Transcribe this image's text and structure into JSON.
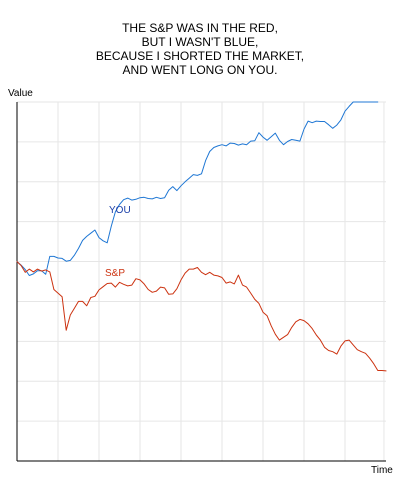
{
  "chart_data": {
    "type": "line",
    "title_lines": [
      "THE S&P WAS IN THE RED,",
      "BUT I WASN'T BLUE,",
      "BECAUSE I SHORTED THE MARKET,",
      "AND WENT LONG ON YOU."
    ],
    "xlabel": "Time",
    "ylabel": "Value",
    "xlim": [
      0,
      90
    ],
    "ylim": [
      0,
      90
    ],
    "grid": true,
    "legend": "inline",
    "series": [
      {
        "name": "YOU",
        "color": "#1f77d4",
        "x": [
          0,
          1,
          2,
          3,
          4,
          5,
          6,
          7,
          8,
          9,
          10,
          11,
          12,
          13,
          14,
          15,
          16,
          17,
          18,
          19,
          20,
          21,
          22,
          23,
          24,
          25,
          26,
          27,
          28,
          29,
          30,
          31,
          32,
          33,
          34,
          35,
          36,
          37,
          38,
          39,
          40,
          41,
          42,
          43,
          44,
          45,
          46,
          47,
          48,
          49,
          50,
          51,
          52,
          53,
          54,
          55,
          56,
          57,
          58,
          59,
          60,
          61,
          62,
          63,
          64,
          65,
          66,
          67,
          68,
          69,
          70,
          71,
          72,
          73,
          74,
          75,
          76,
          77,
          78,
          79,
          80,
          81,
          82,
          83,
          84,
          85,
          86,
          87,
          88
        ],
        "y": [
          50.0,
          49.1,
          48.0,
          46.5,
          46.9,
          47.7,
          47.7,
          46.8,
          51.3,
          51.3,
          50.9,
          50.8,
          50.1,
          50.3,
          51.6,
          53.3,
          55.3,
          56.3,
          57.1,
          57.9,
          56.0,
          55.2,
          54.7,
          58.9,
          62.5,
          64.3,
          65.5,
          65.9,
          65.4,
          65.6,
          66.0,
          66.1,
          65.8,
          65.7,
          66.1,
          65.8,
          66.0,
          67.9,
          68.8,
          67.8,
          69.0,
          70.0,
          70.9,
          71.8,
          71.6,
          72.0,
          75.3,
          77.6,
          78.6,
          79.0,
          79.3,
          79.0,
          79.7,
          79.6,
          79.2,
          79.5,
          79.3,
          80.2,
          80.3,
          82.3,
          81.2,
          80.4,
          81.3,
          82.2,
          80.4,
          79.3,
          80.1,
          80.6,
          80.4,
          80.2,
          83.2,
          85.2,
          84.8,
          85.2,
          85.1,
          85.1,
          84.3,
          83.4,
          84.2,
          85.5,
          87.7,
          88.9,
          90.0,
          90.0,
          90.0,
          90.0,
          90.0,
          90.0,
          90.0
        ]
      },
      {
        "name": "S&P",
        "color": "#cc3311",
        "x": [
          0,
          1,
          2,
          3,
          4,
          5,
          6,
          7,
          8,
          9,
          10,
          11,
          12,
          13,
          14,
          15,
          16,
          17,
          18,
          19,
          20,
          21,
          22,
          23,
          24,
          25,
          26,
          27,
          28,
          29,
          30,
          31,
          32,
          33,
          34,
          35,
          36,
          37,
          38,
          39,
          40,
          41,
          42,
          43,
          44,
          45,
          46,
          47,
          48,
          49,
          50,
          51,
          52,
          53,
          54,
          55,
          56,
          57,
          58,
          59,
          60,
          61,
          62,
          63,
          64,
          65,
          66,
          67,
          68,
          69,
          70,
          71,
          72,
          73,
          74,
          75,
          76,
          77,
          78,
          79,
          80,
          81,
          82,
          83,
          84,
          85,
          86,
          87,
          88,
          89,
          90
        ],
        "y": [
          50.0,
          49.0,
          47.3,
          48.1,
          47.4,
          48.1,
          47.6,
          47.9,
          47.4,
          43.0,
          42.1,
          41.2,
          32.8,
          36.6,
          38.3,
          40.0,
          40.0,
          38.9,
          41.0,
          41.3,
          42.9,
          43.7,
          44.5,
          44.6,
          43.6,
          44.8,
          44.3,
          43.9,
          44.1,
          45.7,
          45.4,
          44.4,
          43.0,
          42.3,
          42.6,
          43.6,
          43.4,
          41.8,
          41.9,
          43.2,
          45.4,
          47.1,
          48.1,
          48.1,
          48.5,
          47.3,
          46.7,
          47.3,
          46.6,
          46.4,
          46.0,
          44.6,
          44.9,
          44.4,
          46.6,
          44.1,
          43.6,
          42.1,
          40.5,
          39.5,
          37.3,
          36.4,
          33.9,
          31.8,
          30.3,
          31.0,
          31.7,
          33.5,
          34.9,
          35.5,
          35.2,
          34.4,
          33.2,
          31.6,
          30.3,
          28.5,
          27.7,
          27.4,
          26.8,
          28.8,
          30.1,
          30.3,
          29.1,
          27.9,
          27.4,
          27.0,
          25.8,
          24.4,
          22.7,
          22.7,
          22.6
        ]
      }
    ]
  }
}
